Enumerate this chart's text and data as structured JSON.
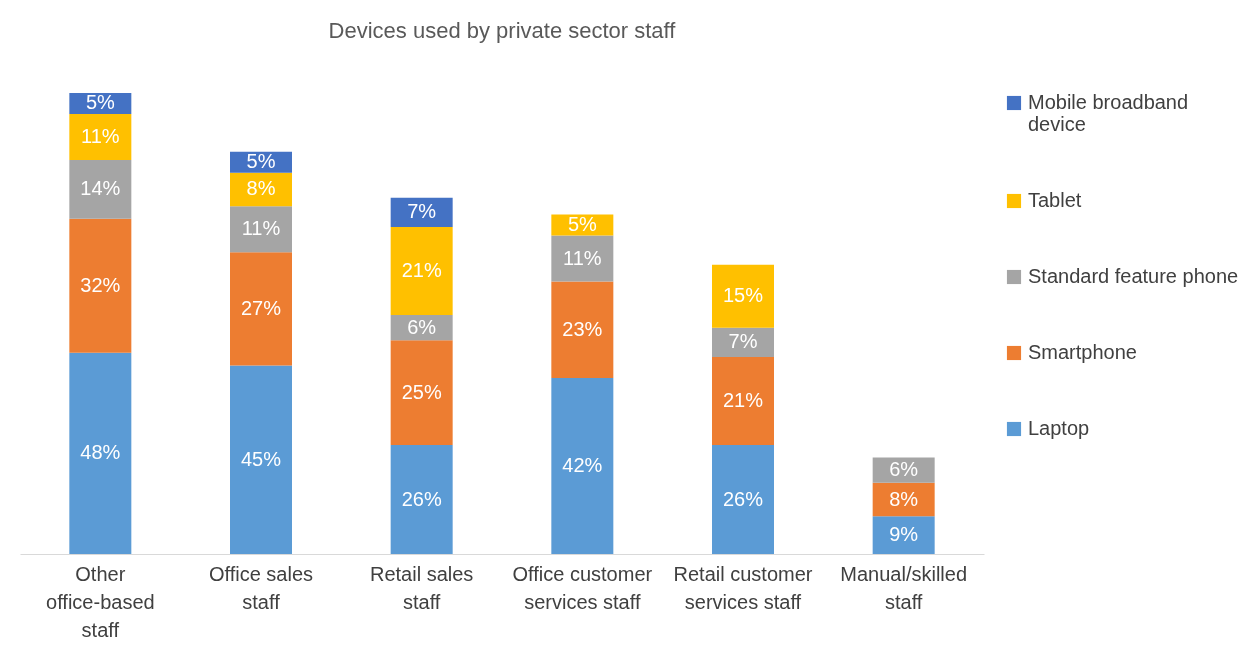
{
  "chart_data": {
    "type": "bar",
    "title": "Devices used by private sector staff",
    "stacked": true,
    "legend": "right",
    "categories": [
      "Other office-based staff",
      "Office sales staff",
      "Retail sales staff",
      "Office customer services staff",
      "Retail customer services staff",
      "Manual/skilled staff"
    ],
    "series": [
      {
        "name": "Laptop",
        "color": "#5b9bd5",
        "values": [
          48,
          45,
          26,
          42,
          26,
          9
        ],
        "value_labels": [
          "48%",
          "45%",
          "26%",
          "42%",
          "26%",
          "9%"
        ]
      },
      {
        "name": "Smartphone",
        "color": "#ed7d31",
        "values": [
          32,
          27,
          25,
          23,
          21,
          8
        ],
        "value_labels": [
          "32%",
          "27%",
          "25%",
          "23%",
          "21%",
          "8%"
        ]
      },
      {
        "name": "Standard feature phone",
        "color": "#a5a5a5",
        "values": [
          14,
          11,
          6,
          11,
          7,
          6
        ],
        "value_labels": [
          "14%",
          "11%",
          "6%",
          "11%",
          "7%",
          "6%"
        ]
      },
      {
        "name": "Tablet",
        "color": "#ffc000",
        "values": [
          11,
          8,
          21,
          5,
          15,
          null
        ],
        "value_labels": [
          "11%",
          "8%",
          "21%",
          "5%",
          "15%",
          null
        ]
      },
      {
        "name": "Mobile broadband device",
        "color": "#4472c4",
        "values": [
          5,
          5,
          7,
          null,
          null,
          null
        ],
        "value_labels": [
          "5%",
          "5%",
          "7%",
          null,
          null,
          null
        ]
      }
    ]
  }
}
